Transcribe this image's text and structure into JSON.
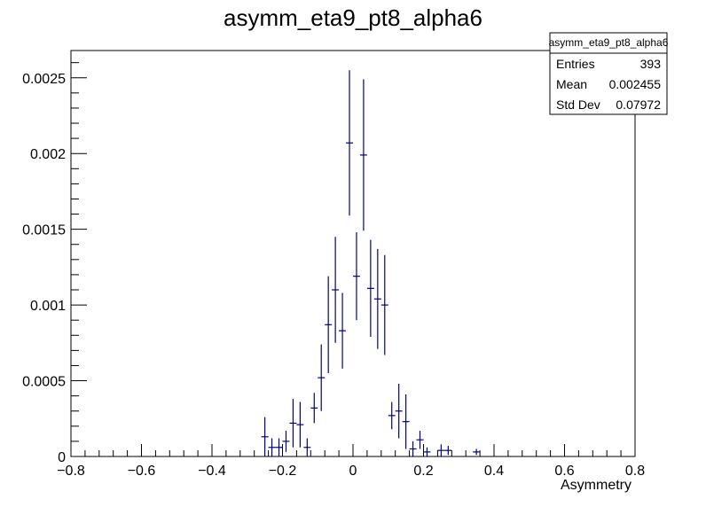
{
  "chart_data": {
    "type": "scatter",
    "title": "asymm_eta9_pt8_alpha6",
    "xlabel": "Asymmetry",
    "ylabel": "",
    "xlim": [
      -0.8,
      0.8
    ],
    "ylim": [
      0,
      0.00268
    ],
    "x_ticks": [
      "−0.8",
      "−0.6",
      "−0.4",
      "−0.2",
      "0",
      "0.2",
      "0.4",
      "0.6",
      "0.8"
    ],
    "y_ticks": [
      "0",
      "0.0005",
      "0.001",
      "0.0015",
      "0.002",
      "0.0025"
    ],
    "grid": false,
    "series": [
      {
        "color": "#000080",
        "points": [
          {
            "x": -0.25,
            "y": 0.00013,
            "err": 0.00013
          },
          {
            "x": -0.23,
            "y": 6e-05,
            "err": 6e-05
          },
          {
            "x": -0.21,
            "y": 6e-05,
            "err": 6e-05
          },
          {
            "x": -0.19,
            "y": 0.0001,
            "err": 7e-05
          },
          {
            "x": -0.17,
            "y": 0.00022,
            "err": 0.00016
          },
          {
            "x": -0.15,
            "y": 0.00021,
            "err": 0.00015
          },
          {
            "x": -0.13,
            "y": 6e-05,
            "err": 6e-05
          },
          {
            "x": -0.11,
            "y": 0.00032,
            "err": 0.0001
          },
          {
            "x": -0.09,
            "y": 0.00052,
            "err": 0.00022
          },
          {
            "x": -0.07,
            "y": 0.00087,
            "err": 0.00032
          },
          {
            "x": -0.05,
            "y": 0.0011,
            "err": 0.00035
          },
          {
            "x": -0.03,
            "y": 0.00083,
            "err": 0.00025
          },
          {
            "x": -0.01,
            "y": 0.00207,
            "err": 0.00048
          },
          {
            "x": 0.01,
            "y": 0.00119,
            "err": 0.00029
          },
          {
            "x": 0.03,
            "y": 0.00199,
            "err": 0.0005
          },
          {
            "x": 0.05,
            "y": 0.00111,
            "err": 0.00032
          },
          {
            "x": 0.07,
            "y": 0.00104,
            "err": 0.00033
          },
          {
            "x": 0.09,
            "y": 0.001,
            "err": 0.00033
          },
          {
            "x": 0.11,
            "y": 0.00027,
            "err": 9e-05
          },
          {
            "x": 0.13,
            "y": 0.0003,
            "err": 0.00018
          },
          {
            "x": 0.15,
            "y": 0.00023,
            "err": 0.00018
          },
          {
            "x": 0.17,
            "y": 5e-05,
            "err": 5e-05
          },
          {
            "x": 0.19,
            "y": 0.00011,
            "err": 6e-05
          },
          {
            "x": 0.21,
            "y": 3e-05,
            "err": 3e-05
          },
          {
            "x": 0.25,
            "y": 4e-05,
            "err": 4e-05
          },
          {
            "x": 0.27,
            "y": 4e-05,
            "err": 3e-05
          },
          {
            "x": 0.35,
            "y": 3e-05,
            "err": 2e-05
          }
        ]
      }
    ]
  },
  "stats_box": {
    "title": "asymm_eta9_pt8_alpha6",
    "rows": [
      {
        "label": "Entries",
        "value": "393"
      },
      {
        "label": "Mean",
        "value": "0.002455"
      },
      {
        "label": "Std Dev",
        "value": "0.07972"
      }
    ]
  }
}
